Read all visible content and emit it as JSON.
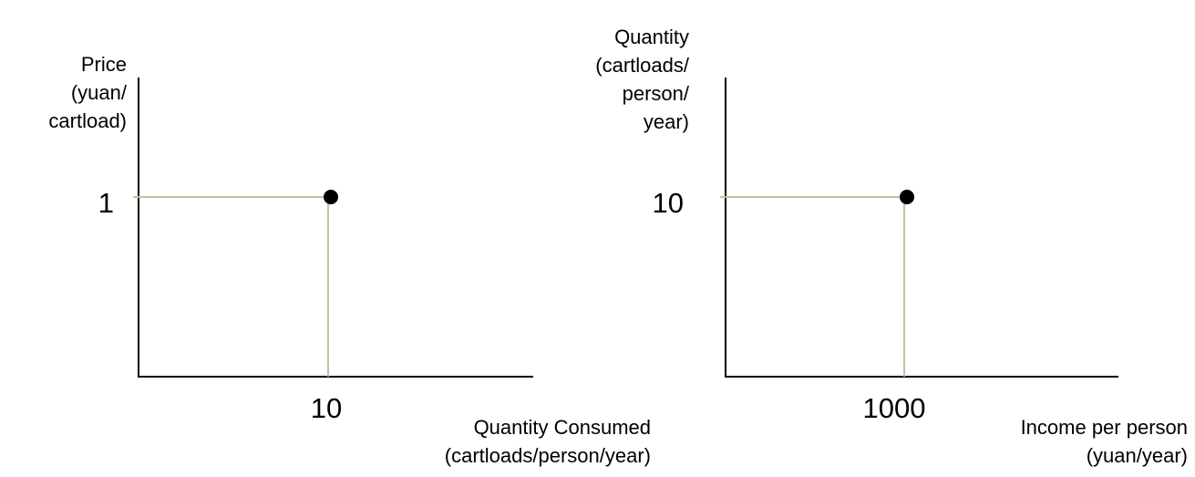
{
  "colors": {
    "guide": "#c8bfa3",
    "axis": "#000000",
    "point": "#000000"
  },
  "chart_data": [
    {
      "type": "scatter",
      "title": "",
      "xlabel": [
        "Quantity Consumed",
        "(cartloads/person/year)"
      ],
      "ylabel": [
        "Price",
        "(yuan/",
        "cartload)"
      ],
      "points": [
        {
          "x": 10,
          "y": 1
        }
      ],
      "x_tick_labels": [
        "10"
      ],
      "y_tick_labels": [
        "1"
      ],
      "grid": false,
      "legend": "none"
    },
    {
      "type": "scatter",
      "title": "",
      "xlabel": [
        "Income per person",
        "(yuan/year)"
      ],
      "ylabel": [
        "Quantity",
        "(cartloads/",
        "person/",
        "year)"
      ],
      "points": [
        {
          "x": 1000,
          "y": 10
        }
      ],
      "x_tick_labels": [
        "1000"
      ],
      "y_tick_labels": [
        "10"
      ],
      "grid": false,
      "legend": "none"
    }
  ]
}
